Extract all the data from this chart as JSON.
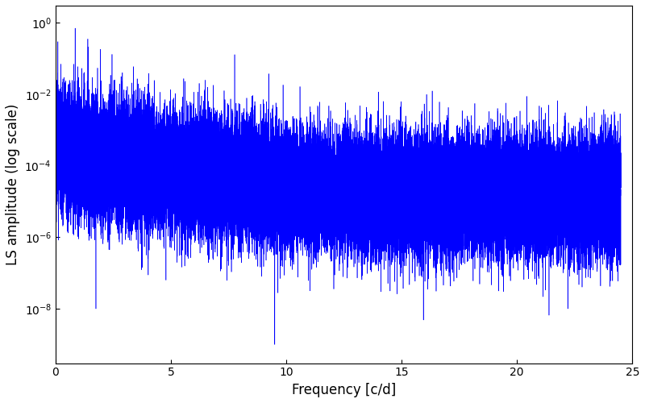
{
  "xlabel": "Frequency [c/d]",
  "ylabel": "LS amplitude (log scale)",
  "xlim": [
    0,
    25
  ],
  "ylim_log": [
    3e-10,
    3.0
  ],
  "line_color": "#0000ff",
  "line_width": 0.4,
  "freq_max": 24.5,
  "n_points": 50000,
  "seed": 42,
  "background_color": "#ffffff",
  "yticks": [
    1e-08,
    1e-06,
    0.0001,
    0.01,
    1.0
  ],
  "xticks": [
    0,
    5,
    10,
    15,
    20,
    25
  ],
  "figsize": [
    8.0,
    5.0
  ],
  "dpi": 100
}
